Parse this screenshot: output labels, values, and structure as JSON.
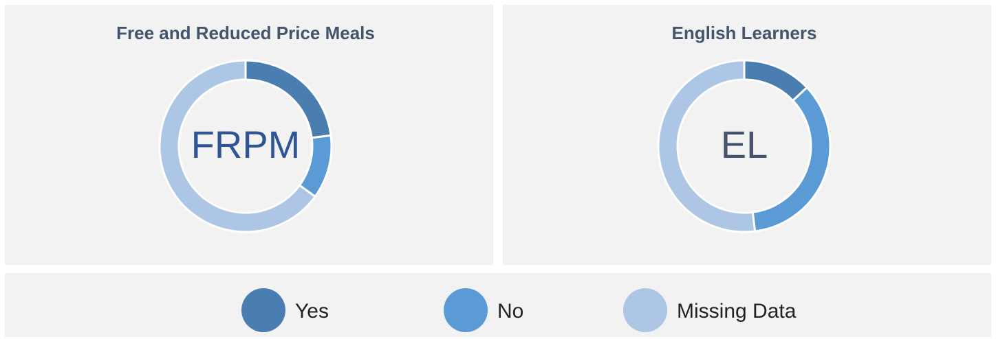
{
  "chart_data": [
    {
      "type": "pie",
      "title": "Free and Reduced Price Meals",
      "center_label": "FRPM",
      "categories": [
        "Yes",
        "No",
        "Missing Data"
      ],
      "values": [
        23,
        12,
        65
      ],
      "colors": [
        "#4a7eb0",
        "#5b9bd5",
        "#adc6e5"
      ],
      "center_color": "#2f5597"
    },
    {
      "type": "pie",
      "title": "English Learners",
      "center_label": "EL",
      "categories": [
        "Yes",
        "No",
        "Missing Data"
      ],
      "values": [
        13,
        35,
        52
      ],
      "colors": [
        "#4a7eb0",
        "#5b9bd5",
        "#adc6e5"
      ],
      "center_color": "#44546a"
    }
  ]
}
